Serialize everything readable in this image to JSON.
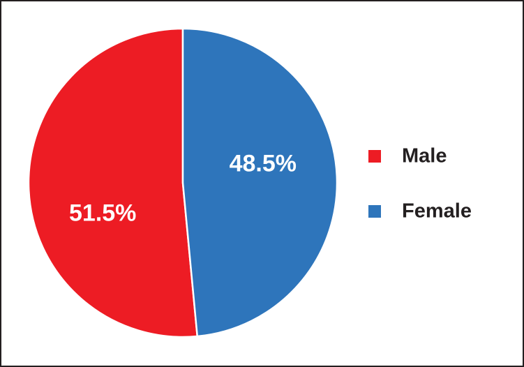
{
  "chart_data": {
    "type": "pie",
    "categories": [
      "Male",
      "Female"
    ],
    "values": [
      51.5,
      48.5
    ],
    "value_labels": [
      "51.5%",
      "48.5%"
    ],
    "colors": [
      "#ed1c24",
      "#2e75bb"
    ],
    "legend": "right"
  }
}
